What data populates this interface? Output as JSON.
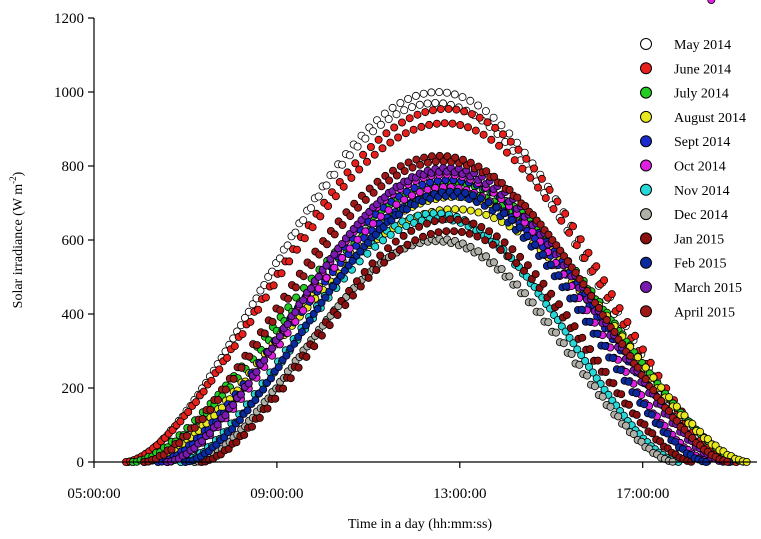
{
  "chart_data": {
    "type": "scatter",
    "xlabel": "Time in a day (hh:mm:ss)",
    "ylabel_main": "Solar irradiance (W m",
    "ylabel_sup": "-2",
    "ylabel_close": ")",
    "ylim": [
      0,
      1200
    ],
    "xlim_hours": [
      5.0,
      19.5
    ],
    "y_ticks": [
      "0",
      "200",
      "400",
      "600",
      "800",
      "1000",
      "1200"
    ],
    "x_ticks": [
      {
        "hour": 5,
        "label": "05:00:00"
      },
      {
        "hour": 9,
        "label": "09:00:00"
      },
      {
        "hour": 13,
        "label": "13:00:00"
      },
      {
        "hour": 17,
        "label": "17:00:00"
      }
    ],
    "legend_position": "top-right",
    "series": [
      {
        "name": "May 2014",
        "color": "#ffffff",
        "sunrise": 5.75,
        "sunset": 18.9,
        "peak": 985,
        "noon": 12.5
      },
      {
        "name": "June 2014",
        "color": "#e8201c",
        "sunrise": 5.7,
        "sunset": 19.05,
        "peak": 935,
        "noon": 12.7
      },
      {
        "name": "July 2014",
        "color": "#22cc22",
        "sunrise": 5.85,
        "sunset": 19.25,
        "peak": 740,
        "noon": 12.9
      },
      {
        "name": "August 2014",
        "color": "#e8e820",
        "sunrise": 6.1,
        "sunset": 19.3,
        "peak": 700,
        "noon": 12.9
      },
      {
        "name": "Sept 2014",
        "color": "#1a2acc",
        "sunrise": 6.4,
        "sunset": 18.9,
        "peak": 745,
        "noon": 12.8
      },
      {
        "name": "Oct 2014",
        "color": "#e020e0",
        "sunrise": 6.6,
        "sunset": 18.5,
        "peak": 760,
        "noon": 12.7
      },
      {
        "name": "Nov 2014",
        "color": "#26d8d8",
        "sunrise": 6.9,
        "sunset": 17.8,
        "peak": 665,
        "noon": 12.5
      },
      {
        "name": "Dec 2014",
        "color": "#b0b0a8",
        "sunrise": 7.2,
        "sunset": 17.7,
        "peak": 600,
        "noon": 12.5
      },
      {
        "name": "Jan 2015",
        "color": "#8c1010",
        "sunrise": 7.35,
        "sunset": 18.1,
        "peak": 640,
        "noon": 12.8
      },
      {
        "name": "Feb 2015",
        "color": "#0c2aa0",
        "sunrise": 7.0,
        "sunset": 18.4,
        "peak": 725,
        "noon": 12.8
      },
      {
        "name": "March 2015",
        "color": "#7a1ab0",
        "sunrise": 6.6,
        "sunset": 18.8,
        "peak": 790,
        "noon": 12.7
      },
      {
        "name": "April 2015",
        "color": "#a01818",
        "sunrise": 6.1,
        "sunset": 18.9,
        "peak": 820,
        "noon": 12.6
      }
    ]
  }
}
